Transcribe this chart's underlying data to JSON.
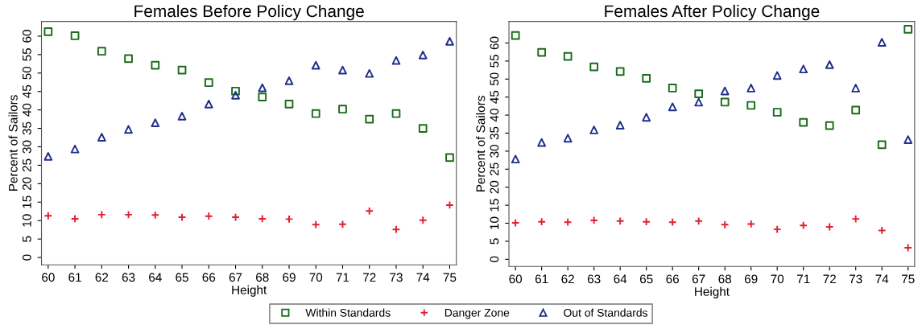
{
  "chart_data": [
    {
      "type": "scatter",
      "title": "Females Before Policy Change",
      "xlabel": "Height",
      "ylabel": "Percent of Sailors",
      "x": [
        60,
        61,
        62,
        63,
        64,
        65,
        66,
        67,
        68,
        69,
        70,
        71,
        72,
        73,
        74,
        75
      ],
      "xlim": [
        59.75,
        75.25
      ],
      "xticks": [
        60,
        61,
        62,
        63,
        64,
        65,
        66,
        67,
        68,
        69,
        70,
        71,
        72,
        73,
        74,
        75
      ],
      "ylim": [
        -2,
        64
      ],
      "yticks": [
        0,
        5,
        10,
        15,
        20,
        25,
        30,
        35,
        40,
        45,
        50,
        55,
        60
      ],
      "grid": false,
      "legend": "bottom",
      "series": [
        {
          "name": "Within Standards",
          "color": "#1a6b1a",
          "marker": "square",
          "values": [
            61.2,
            60.1,
            55.9,
            53.9,
            52.1,
            50.8,
            47.4,
            45.1,
            43.5,
            41.6,
            39.0,
            40.2,
            37.5,
            39.0,
            35.0,
            27.1
          ]
        },
        {
          "name": "Danger Zone",
          "color": "#e0202a",
          "marker": "cross",
          "values": [
            11.3,
            10.5,
            11.6,
            11.6,
            11.5,
            10.9,
            11.2,
            10.9,
            10.5,
            10.4,
            8.9,
            9.0,
            12.6,
            7.6,
            10.1,
            14.2
          ]
        },
        {
          "name": "Out of Standards",
          "color": "#1f2f8a",
          "marker": "triangle",
          "values": [
            27.4,
            29.4,
            32.6,
            34.7,
            36.5,
            38.3,
            41.6,
            44.0,
            46.0,
            47.9,
            52.1,
            50.8,
            49.9,
            53.4,
            54.9,
            58.6
          ]
        }
      ]
    },
    {
      "type": "scatter",
      "title": "Females After Policy Change",
      "xlabel": "Height",
      "ylabel": "Percent of Sailors",
      "x": [
        60,
        61,
        62,
        63,
        64,
        65,
        66,
        67,
        68,
        69,
        70,
        71,
        72,
        73,
        74,
        75
      ],
      "xlim": [
        59.75,
        75.25
      ],
      "xticks": [
        60,
        61,
        62,
        63,
        64,
        65,
        66,
        67,
        68,
        69,
        70,
        71,
        72,
        73,
        74,
        75
      ],
      "ylim": [
        -2,
        66
      ],
      "yticks": [
        0,
        5,
        10,
        15,
        20,
        25,
        30,
        35,
        40,
        45,
        50,
        55,
        60
      ],
      "grid": false,
      "series": [
        {
          "color": "#1a6b1a",
          "marker": "square",
          "values": [
            62.1,
            57.4,
            56.3,
            53.4,
            52.1,
            50.2,
            47.5,
            45.9,
            43.6,
            42.7,
            40.8,
            38.0,
            37.1,
            41.4,
            31.8,
            63.8
          ]
        },
        {
          "color": "#e0202a",
          "marker": "cross",
          "values": [
            10.1,
            10.4,
            10.3,
            10.8,
            10.6,
            10.4,
            10.3,
            10.6,
            9.6,
            9.8,
            8.3,
            9.4,
            9.0,
            11.2,
            8.0,
            3.2
          ]
        },
        {
          "color": "#1f2f8a",
          "marker": "triangle",
          "values": [
            27.8,
            32.4,
            33.6,
            35.9,
            37.2,
            39.4,
            42.3,
            43.6,
            46.7,
            47.5,
            51.0,
            52.8,
            54.0,
            47.5,
            60.2,
            33.2
          ]
        }
      ]
    }
  ]
}
